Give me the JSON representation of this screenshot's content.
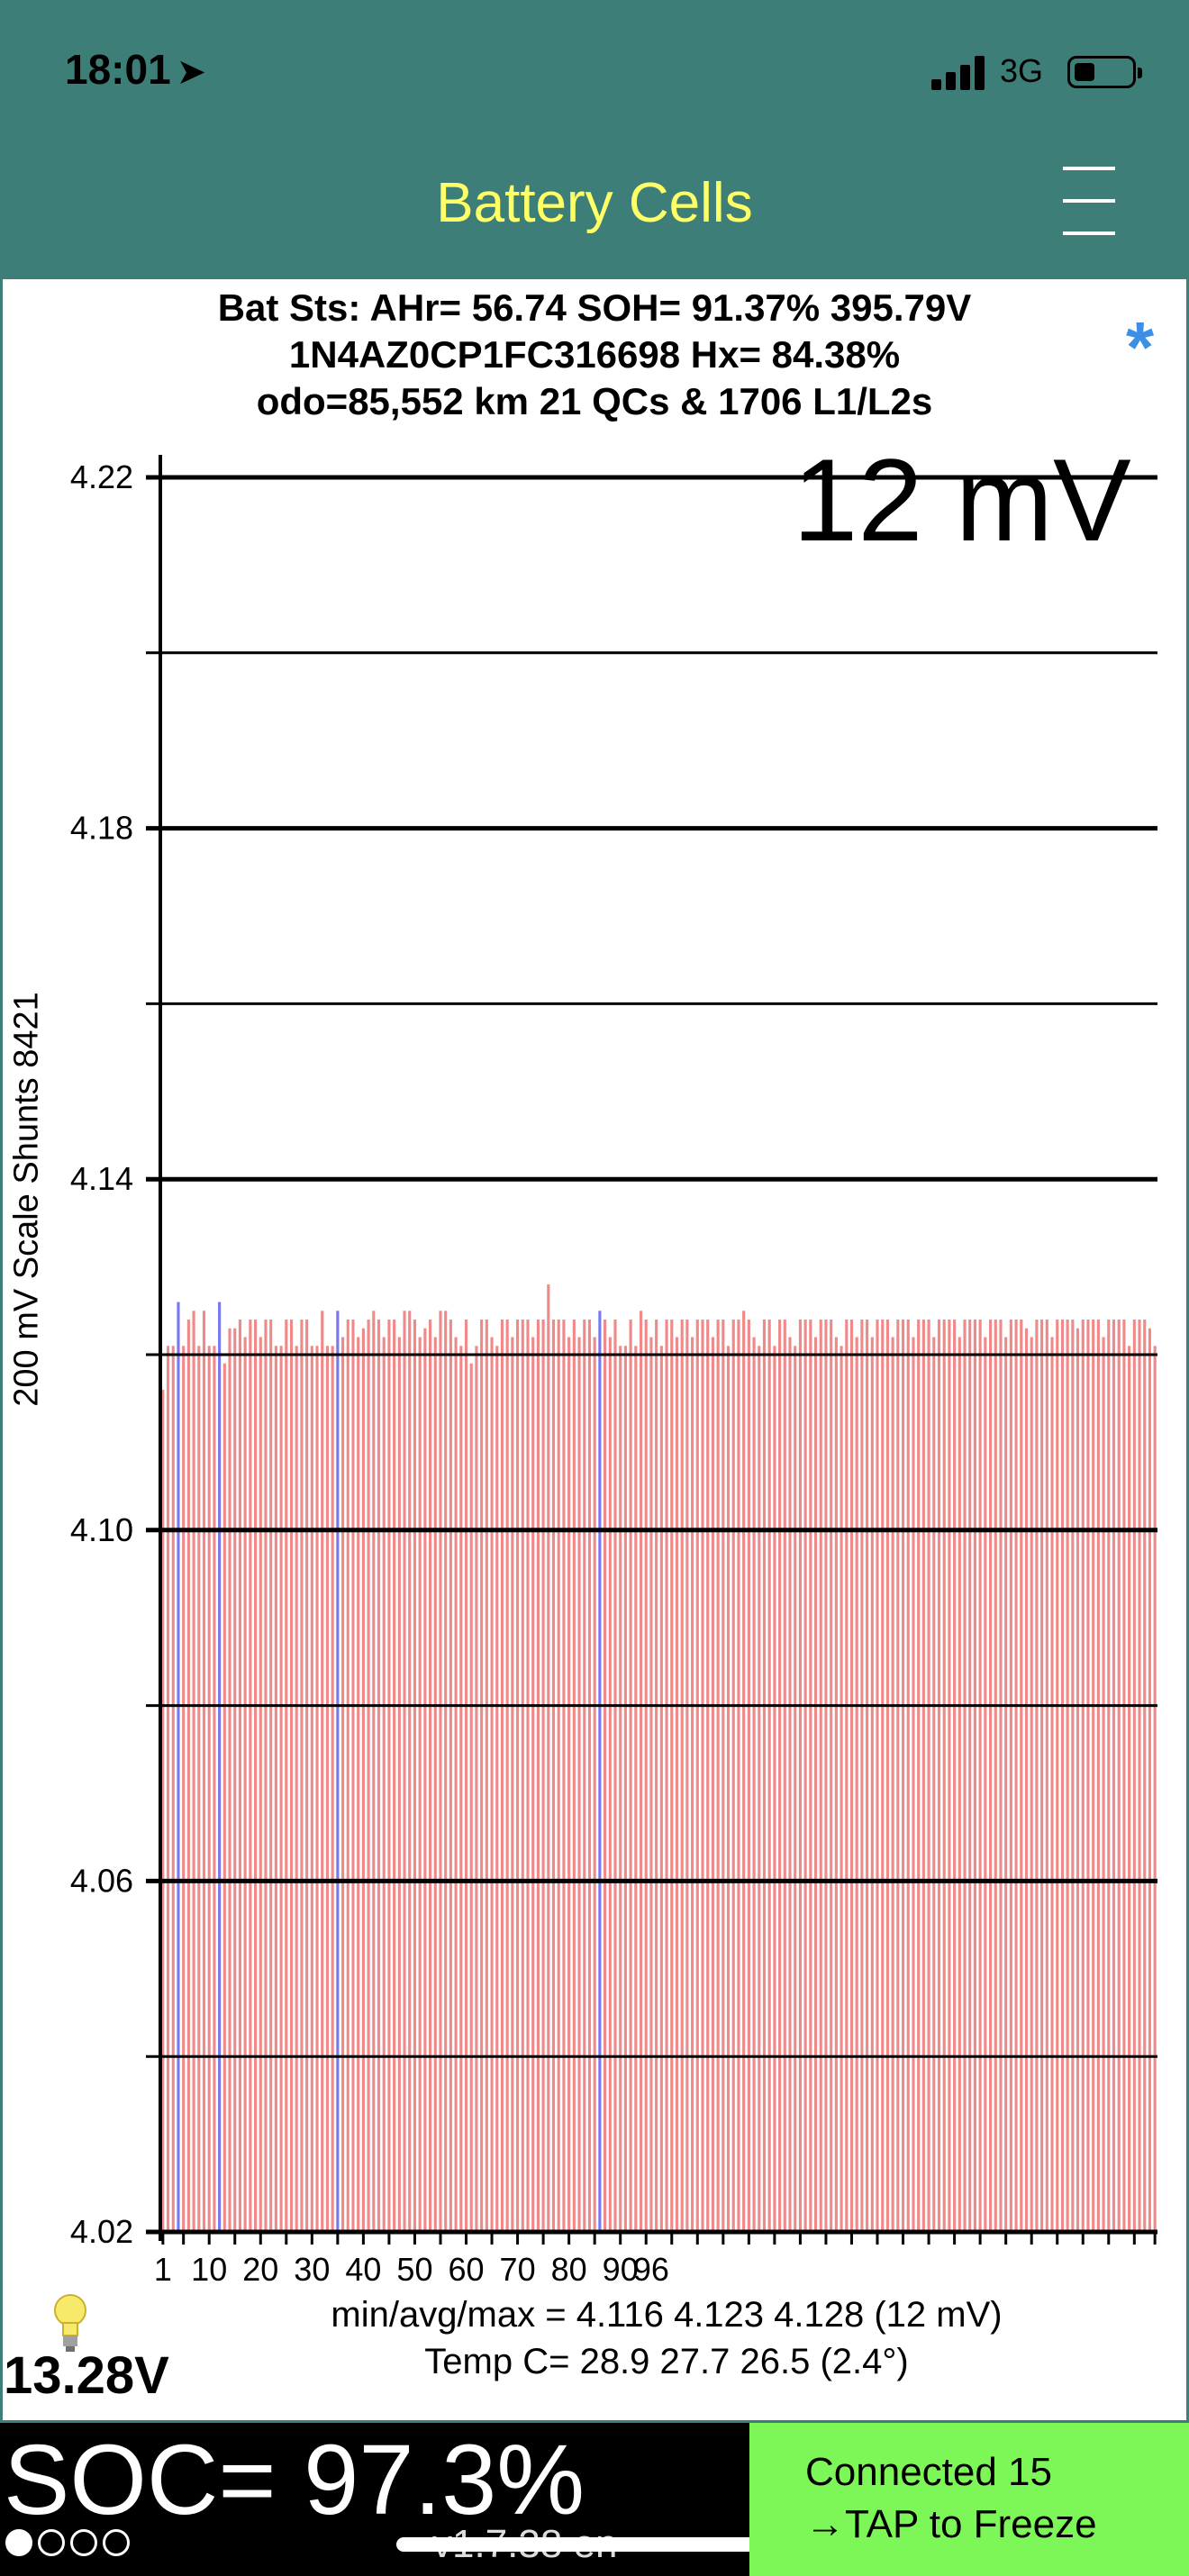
{
  "status_bar": {
    "time": "18:01",
    "network": "3G",
    "icons": [
      "location-arrow-icon",
      "signal-icon",
      "battery-icon"
    ]
  },
  "nav": {
    "title": "Battery Cells",
    "menu_icon": "hamburger-menu-icon"
  },
  "header": {
    "line1": "Bat Sts: AHr= 56.74 SOH= 91.37% 395.79V",
    "line2": "1N4AZ0CP1FC316698   Hx= 84.38%",
    "line3": "odo=85,552 km 21 QCs & 1706 L1/L2s",
    "asterisk": "*"
  },
  "chart_data": {
    "type": "bar",
    "spread_label": "12 mV",
    "y_axis_title": "200 mV Scale   Shunts 8421",
    "ylim": [
      4.02,
      4.22
    ],
    "y_ticks": [
      "4.22",
      "4.18",
      "4.14",
      "4.10",
      "4.06",
      "4.02"
    ],
    "x_ticks": [
      1,
      10,
      20,
      30,
      40,
      50,
      60,
      70,
      80,
      90,
      96
    ],
    "bar_color": "#f08a8a",
    "shunt_color": "#7878f0",
    "shunted_cells": [
      4,
      12,
      35,
      86
    ],
    "values": [
      4.116,
      4.121,
      4.121,
      4.126,
      4.121,
      4.124,
      4.125,
      4.121,
      4.125,
      4.121,
      4.121,
      4.126,
      4.119,
      4.123,
      4.123,
      4.124,
      4.122,
      4.124,
      4.124,
      4.122,
      4.124,
      4.124,
      4.121,
      4.121,
      4.124,
      4.124,
      4.121,
      4.124,
      4.124,
      4.121,
      4.121,
      4.125,
      4.121,
      4.121,
      4.125,
      4.122,
      4.124,
      4.124,
      4.122,
      4.123,
      4.124,
      4.125,
      4.124,
      4.122,
      4.124,
      4.124,
      4.122,
      4.125,
      4.125,
      4.124,
      4.122,
      4.123,
      4.124,
      4.122,
      4.125,
      4.125,
      4.124,
      4.122,
      4.121,
      4.124,
      4.119,
      4.121,
      4.124,
      4.124,
      4.122,
      4.121,
      4.124,
      4.124,
      4.122,
      4.124,
      4.124,
      4.124,
      4.122,
      4.124,
      4.124,
      4.128,
      4.124,
      4.124,
      4.124,
      4.122,
      4.124,
      4.122,
      4.124,
      4.124,
      4.122,
      4.125,
      4.124,
      4.122,
      4.124,
      4.121,
      4.121,
      4.124,
      4.121,
      4.125,
      4.124,
      4.122,
      4.124,
      4.121,
      4.124,
      4.124,
      4.122,
      4.124,
      4.124,
      4.122,
      4.124,
      4.124,
      4.124,
      4.122,
      4.124,
      4.124,
      4.121,
      4.124,
      4.124,
      4.125,
      4.124,
      4.122,
      4.121,
      4.124,
      4.124,
      4.121,
      4.124,
      4.124,
      4.122,
      4.121,
      4.124,
      4.124,
      4.124,
      4.122,
      4.124,
      4.124,
      4.124,
      4.122,
      4.121,
      4.124,
      4.124,
      4.122,
      4.124,
      4.124,
      4.122,
      4.124,
      4.124,
      4.124,
      4.122,
      4.124,
      4.124,
      4.124,
      4.122,
      4.124,
      4.124,
      4.124,
      4.122,
      4.124,
      4.124,
      4.124,
      4.124,
      4.122,
      4.124,
      4.124,
      4.124,
      4.124,
      4.122,
      4.124,
      4.124,
      4.124,
      4.122,
      4.124,
      4.124,
      4.124,
      4.123,
      4.122,
      4.124,
      4.124,
      4.124,
      4.122,
      4.124,
      4.124,
      4.124,
      4.124,
      4.123,
      4.124,
      4.124,
      4.124,
      4.124,
      4.122,
      4.124,
      4.124,
      4.124,
      4.124,
      4.121,
      4.124,
      4.124,
      4.124,
      4.123,
      4.121
    ]
  },
  "stats": {
    "minmax_line": "min/avg/max = 4.116  4.123  4.128   (12 mV)",
    "temp_line": "Temp C= 28.9   27.7   26.5   (2.4°)"
  },
  "aux": {
    "bulb_icon": "lightbulb-icon",
    "voltage": "13.28V"
  },
  "bottom": {
    "soc": "SOC= 97.3%",
    "version": "v1.7.38 en",
    "page_dots": 4,
    "active_dot": 0,
    "connect_line1": "Connected 15",
    "connect_line2": "→TAP to Freeze"
  }
}
